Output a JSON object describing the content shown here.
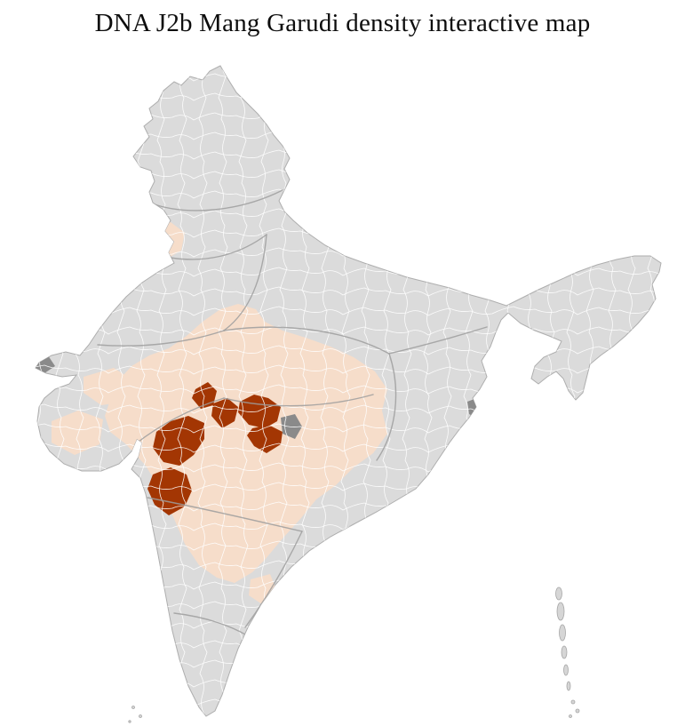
{
  "page": {
    "title": "DNA J2b Mang Garudi density interactive map"
  },
  "map": {
    "country": "India",
    "unit": "districts",
    "colors": {
      "background": "#ffffff",
      "no_data": "#dbdbdb",
      "low_density": "#f6ddca",
      "high_density": "#a33603",
      "district_border": "#ffffff",
      "state_border": "#9e9e9e",
      "outline": "#aeaeae",
      "neutral_dark": "#8a8a8a",
      "island": "#d6d6d6"
    }
  }
}
